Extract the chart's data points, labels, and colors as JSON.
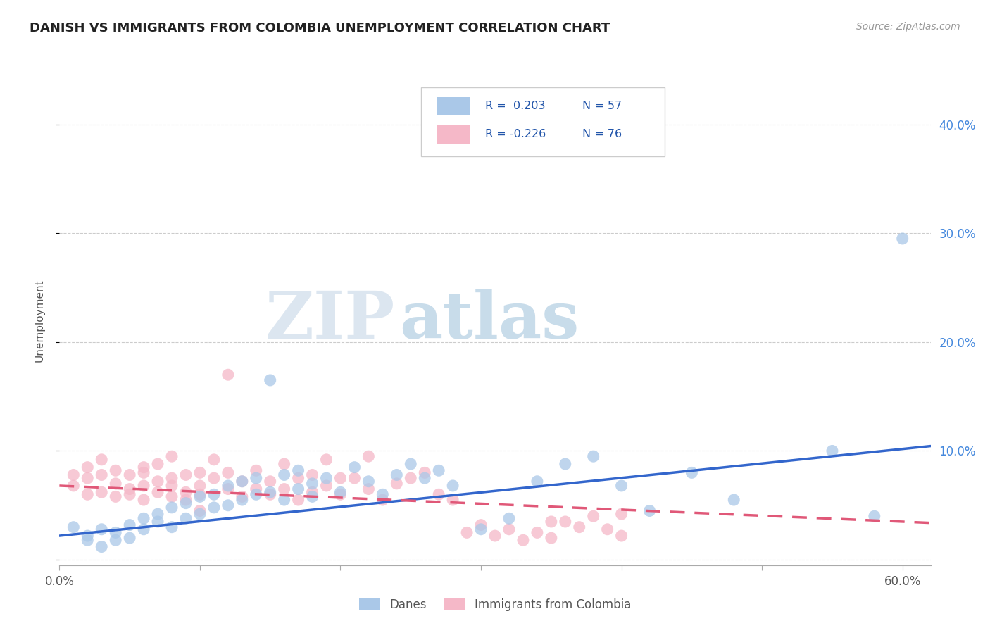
{
  "title": "DANISH VS IMMIGRANTS FROM COLOMBIA UNEMPLOYMENT CORRELATION CHART",
  "source": "Source: ZipAtlas.com",
  "ylabel": "Unemployment",
  "xlim": [
    0.0,
    0.62
  ],
  "ylim": [
    -0.005,
    0.445
  ],
  "yticks": [
    0.0,
    0.1,
    0.2,
    0.3,
    0.4
  ],
  "grid_color": "#cccccc",
  "background_color": "#ffffff",
  "danes_color": "#aac8e8",
  "immigrants_color": "#f5b8c8",
  "danes_line_color": "#3366cc",
  "immigrants_line_color": "#e05878",
  "danes_label": "Danes",
  "immigrants_label": "Immigrants from Colombia",
  "watermark_zip": "ZIP",
  "watermark_atlas": "atlas",
  "danes_slope": 0.133,
  "danes_intercept": 0.022,
  "immigrants_slope": -0.055,
  "immigrants_intercept": 0.068,
  "danes_x": [
    0.01,
    0.02,
    0.02,
    0.03,
    0.03,
    0.04,
    0.04,
    0.05,
    0.05,
    0.06,
    0.06,
    0.07,
    0.07,
    0.08,
    0.08,
    0.09,
    0.09,
    0.1,
    0.1,
    0.11,
    0.11,
    0.12,
    0.12,
    0.13,
    0.13,
    0.14,
    0.14,
    0.15,
    0.15,
    0.16,
    0.16,
    0.17,
    0.17,
    0.18,
    0.18,
    0.19,
    0.2,
    0.21,
    0.22,
    0.23,
    0.24,
    0.25,
    0.26,
    0.27,
    0.28,
    0.3,
    0.32,
    0.34,
    0.36,
    0.38,
    0.4,
    0.42,
    0.45,
    0.48,
    0.55,
    0.58,
    0.6
  ],
  "danes_y": [
    0.03,
    0.022,
    0.018,
    0.028,
    0.012,
    0.025,
    0.018,
    0.032,
    0.02,
    0.038,
    0.028,
    0.035,
    0.042,
    0.03,
    0.048,
    0.038,
    0.052,
    0.042,
    0.058,
    0.048,
    0.06,
    0.05,
    0.068,
    0.055,
    0.072,
    0.06,
    0.075,
    0.165,
    0.062,
    0.078,
    0.055,
    0.082,
    0.065,
    0.07,
    0.058,
    0.075,
    0.062,
    0.085,
    0.072,
    0.06,
    0.078,
    0.088,
    0.075,
    0.082,
    0.068,
    0.028,
    0.038,
    0.072,
    0.088,
    0.095,
    0.068,
    0.045,
    0.08,
    0.055,
    0.1,
    0.04,
    0.295
  ],
  "immigrants_x": [
    0.01,
    0.01,
    0.02,
    0.02,
    0.02,
    0.03,
    0.03,
    0.03,
    0.04,
    0.04,
    0.04,
    0.05,
    0.05,
    0.05,
    0.06,
    0.06,
    0.06,
    0.07,
    0.07,
    0.07,
    0.08,
    0.08,
    0.08,
    0.09,
    0.09,
    0.09,
    0.1,
    0.1,
    0.1,
    0.11,
    0.11,
    0.12,
    0.12,
    0.13,
    0.13,
    0.14,
    0.14,
    0.15,
    0.15,
    0.16,
    0.16,
    0.17,
    0.17,
    0.18,
    0.18,
    0.19,
    0.2,
    0.21,
    0.22,
    0.23,
    0.24,
    0.25,
    0.26,
    0.27,
    0.28,
    0.29,
    0.3,
    0.31,
    0.32,
    0.33,
    0.34,
    0.35,
    0.36,
    0.37,
    0.38,
    0.39,
    0.4,
    0.22,
    0.12,
    0.19,
    0.1,
    0.35,
    0.4,
    0.06,
    0.08,
    0.2
  ],
  "immigrants_y": [
    0.068,
    0.078,
    0.06,
    0.075,
    0.085,
    0.062,
    0.078,
    0.092,
    0.058,
    0.07,
    0.082,
    0.065,
    0.078,
    0.06,
    0.055,
    0.068,
    0.08,
    0.062,
    0.072,
    0.088,
    0.058,
    0.075,
    0.068,
    0.062,
    0.078,
    0.055,
    0.068,
    0.08,
    0.06,
    0.075,
    0.092,
    0.065,
    0.08,
    0.058,
    0.072,
    0.065,
    0.082,
    0.06,
    0.072,
    0.088,
    0.065,
    0.075,
    0.055,
    0.062,
    0.078,
    0.068,
    0.06,
    0.075,
    0.065,
    0.055,
    0.07,
    0.075,
    0.08,
    0.06,
    0.055,
    0.025,
    0.032,
    0.022,
    0.028,
    0.018,
    0.025,
    0.02,
    0.035,
    0.03,
    0.04,
    0.028,
    0.022,
    0.095,
    0.17,
    0.092,
    0.045,
    0.035,
    0.042,
    0.085,
    0.095,
    0.075
  ]
}
